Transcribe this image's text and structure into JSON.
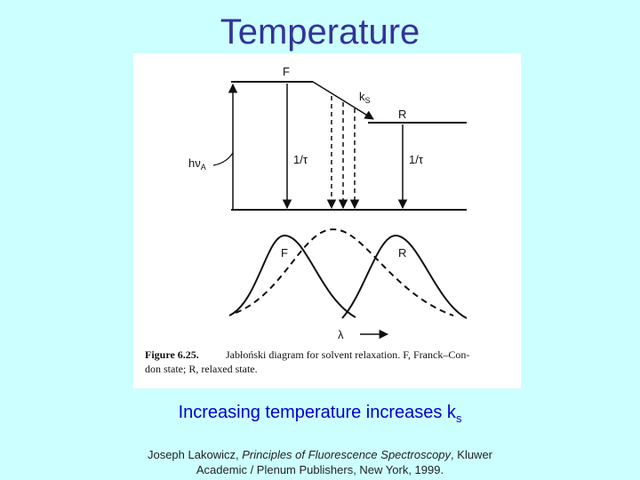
{
  "title": "Temperature",
  "figure": {
    "labels": {
      "upper_state": "F",
      "rate": "k",
      "rate_sub": "S",
      "relaxed_state": "R",
      "excitation": "hν",
      "excitation_sub": "A",
      "decay_f": "1/τ",
      "decay_r": "1/τ",
      "spectrum_f": "F",
      "spectrum_r": "R",
      "wavelength": "λ"
    },
    "caption_label": "Figure 6.25.",
    "caption_lines": [
      "Jabłoński diagram for solvent relaxation. F, Franck–Con-",
      "don state; R, relaxed state."
    ]
  },
  "subtitle": {
    "text": "Increasing temperature increases k",
    "sub": "s"
  },
  "citation": {
    "author": "Joseph Lakowicz, ",
    "book": "Principles of Fluorescence Spectroscopy",
    "rest": ", Kluwer",
    "line2": "Academic / Plenum Publishers, New York, 1999."
  }
}
